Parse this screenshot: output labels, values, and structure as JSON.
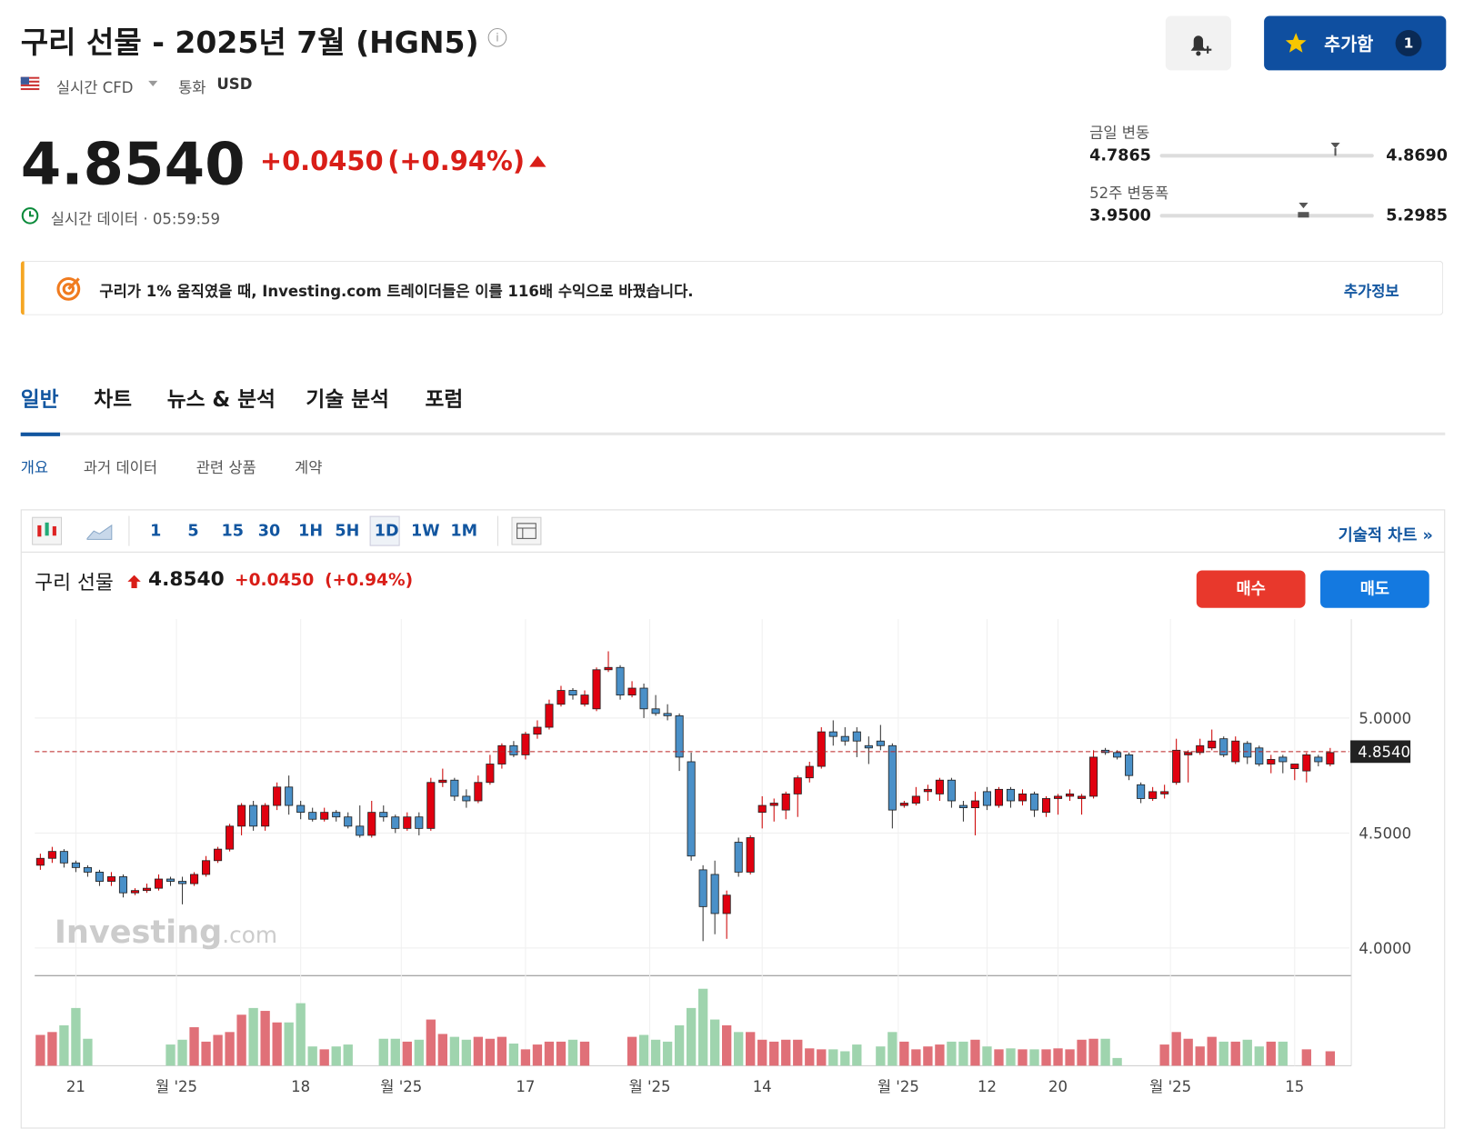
{
  "header": {
    "title": "구리 선물 - 2025년 7월 (HGN5)",
    "market": "실시간 CFD",
    "currency_label": "통화",
    "currency": "USD",
    "watchlist_button": "추가함",
    "watchlist_count": "1"
  },
  "quote": {
    "price": "4.8540",
    "change": "+0.0450",
    "change_pct": "(+0.94%)",
    "status": "실시간 데이터 · 05:59:59"
  },
  "ranges": [
    {
      "label": "금일 변동",
      "low": "4.7865",
      "high": "4.8690"
    },
    {
      "label": "52주 변동폭",
      "low": "3.9500",
      "high": "5.2985"
    }
  ],
  "banner": {
    "text": "구리가 1% 움직였을 때, Investing.com 트레이더들은 이를 116배 수익으로 바꿨습니다.",
    "link": "추가정보"
  },
  "tabs": [
    "일반",
    "차트",
    "뉴스 & 분석",
    "기술 분석",
    "포럼"
  ],
  "subtabs": [
    "개요",
    "과거 데이터",
    "관련 상품",
    "계약"
  ],
  "toolbar": {
    "intervals": [
      "1",
      "5",
      "15",
      "30",
      "1H",
      "5H",
      "1D",
      "1W",
      "1M"
    ],
    "link": "기술적 차트 »"
  },
  "chart_header": {
    "name": "구리 선물",
    "buy": "매수",
    "sell": "매도",
    "watermark": "Investing",
    "watermark_suffix": ".com"
  },
  "chart_data": {
    "type": "candlestick",
    "up_color": "#e0000f",
    "down_color": "#4a90c8",
    "volume_up_color": "#e07078",
    "volume_down_color": "#9fd4ae",
    "grid": true,
    "ylim": [
      3.88,
      5.43
    ],
    "yticks": [
      {
        "value": 4,
        "label": "4.0000"
      },
      {
        "value": 4.5,
        "label": "4.5000"
      },
      {
        "value": 5,
        "label": "5.0000"
      }
    ],
    "last_price": {
      "value": 4.854,
      "label": "4.8540"
    },
    "xticks": [
      {
        "value": 3,
        "label": "21"
      },
      {
        "value": 11.5,
        "label": "월 '25"
      },
      {
        "value": 22,
        "label": "18"
      },
      {
        "value": 30.5,
        "label": "월 '25"
      },
      {
        "value": 41,
        "label": "17"
      },
      {
        "value": 51.5,
        "label": "월 '25"
      },
      {
        "value": 61,
        "label": "14"
      },
      {
        "value": 72.5,
        "label": "월 '25"
      },
      {
        "value": 80,
        "label": "12"
      },
      {
        "value": 86,
        "label": "20"
      },
      {
        "value": 95.5,
        "label": "월 '25"
      },
      {
        "value": 106,
        "label": "15"
      }
    ],
    "ohlc": [
      [
        4.36,
        4.41,
        4.34,
        4.39
      ],
      [
        4.39,
        4.44,
        4.37,
        4.42
      ],
      [
        4.42,
        4.43,
        4.35,
        4.37
      ],
      [
        4.37,
        4.38,
        4.33,
        4.35
      ],
      [
        4.35,
        4.36,
        4.31,
        4.33
      ],
      [
        4.33,
        4.34,
        4.27,
        4.29
      ],
      [
        4.29,
        4.33,
        4.27,
        4.31
      ],
      [
        4.31,
        4.32,
        4.22,
        4.24
      ],
      [
        4.24,
        4.26,
        4.23,
        4.25
      ],
      [
        4.25,
        4.28,
        4.24,
        4.26
      ],
      [
        4.26,
        4.32,
        4.25,
        4.3
      ],
      [
        4.3,
        4.31,
        4.27,
        4.29
      ],
      [
        4.29,
        4.31,
        4.19,
        4.28
      ],
      [
        4.28,
        4.33,
        4.27,
        4.32
      ],
      [
        4.32,
        4.4,
        4.31,
        4.38
      ],
      [
        4.38,
        4.44,
        4.37,
        4.43
      ],
      [
        4.43,
        4.54,
        4.42,
        4.53
      ],
      [
        4.53,
        4.63,
        4.49,
        4.62
      ],
      [
        4.62,
        4.64,
        4.51,
        4.53
      ],
      [
        4.53,
        4.63,
        4.51,
        4.62
      ],
      [
        4.62,
        4.72,
        4.6,
        4.7
      ],
      [
        4.7,
        4.75,
        4.58,
        4.62
      ],
      [
        4.62,
        4.64,
        4.56,
        4.59
      ],
      [
        4.59,
        4.61,
        4.55,
        4.56
      ],
      [
        4.56,
        4.61,
        4.55,
        4.59
      ],
      [
        4.59,
        4.6,
        4.55,
        4.57
      ],
      [
        4.57,
        4.59,
        4.52,
        4.53
      ],
      [
        4.53,
        4.62,
        4.48,
        4.49
      ],
      [
        4.49,
        4.64,
        4.48,
        4.59
      ],
      [
        4.59,
        4.62,
        4.55,
        4.57
      ],
      [
        4.57,
        4.58,
        4.5,
        4.52
      ],
      [
        4.52,
        4.59,
        4.51,
        4.57
      ],
      [
        4.57,
        4.59,
        4.49,
        4.52
      ],
      [
        4.52,
        4.74,
        4.51,
        4.72
      ],
      [
        4.72,
        4.78,
        4.7,
        4.73
      ],
      [
        4.73,
        4.74,
        4.64,
        4.66
      ],
      [
        4.66,
        4.69,
        4.61,
        4.64
      ],
      [
        4.64,
        4.75,
        4.63,
        4.72
      ],
      [
        4.72,
        4.84,
        4.71,
        4.8
      ],
      [
        4.8,
        4.89,
        4.78,
        4.88
      ],
      [
        4.88,
        4.9,
        4.83,
        4.84
      ],
      [
        4.84,
        4.94,
        4.82,
        4.93
      ],
      [
        4.93,
        4.99,
        4.91,
        4.96
      ],
      [
        4.96,
        5.08,
        4.95,
        5.06
      ],
      [
        5.06,
        5.14,
        5.05,
        5.12
      ],
      [
        5.12,
        5.13,
        5.08,
        5.1
      ],
      [
        5.06,
        5.12,
        5.05,
        5.1
      ],
      [
        5.04,
        5.22,
        5.03,
        5.21
      ],
      [
        5.21,
        5.29,
        5.2,
        5.22
      ],
      [
        5.22,
        5.23,
        5.08,
        5.1
      ],
      [
        5.1,
        5.16,
        5.09,
        5.13
      ],
      [
        5.13,
        5.15,
        5.0,
        5.04
      ],
      [
        5.04,
        5.1,
        5.01,
        5.02
      ],
      [
        5.02,
        5.06,
        4.99,
        5.01
      ],
      [
        5.01,
        5.02,
        4.77,
        4.83
      ],
      [
        4.81,
        4.85,
        4.38,
        4.4
      ],
      [
        4.34,
        4.36,
        4.03,
        4.18
      ],
      [
        4.32,
        4.38,
        4.06,
        4.15
      ],
      [
        4.15,
        4.25,
        4.04,
        4.23
      ],
      [
        4.46,
        4.48,
        4.31,
        4.33
      ],
      [
        4.33,
        4.49,
        4.32,
        4.48
      ],
      [
        4.59,
        4.66,
        4.52,
        4.62
      ],
      [
        4.62,
        4.65,
        4.55,
        4.63
      ],
      [
        4.6,
        4.68,
        4.56,
        4.67
      ],
      [
        4.67,
        4.75,
        4.57,
        4.74
      ],
      [
        4.74,
        4.81,
        4.72,
        4.79
      ],
      [
        4.79,
        4.96,
        4.78,
        4.94
      ],
      [
        4.94,
        4.99,
        4.88,
        4.92
      ],
      [
        4.92,
        4.96,
        4.88,
        4.9
      ],
      [
        4.94,
        4.96,
        4.83,
        4.9
      ],
      [
        4.88,
        4.92,
        4.8,
        4.87
      ],
      [
        4.9,
        4.97,
        4.86,
        4.88
      ],
      [
        4.88,
        4.89,
        4.52,
        4.6
      ],
      [
        4.62,
        4.64,
        4.61,
        4.63
      ],
      [
        4.63,
        4.7,
        4.62,
        4.66
      ],
      [
        4.68,
        4.71,
        4.64,
        4.69
      ],
      [
        4.67,
        4.74,
        4.64,
        4.73
      ],
      [
        4.73,
        4.74,
        4.61,
        4.64
      ],
      [
        4.62,
        4.64,
        4.55,
        4.61
      ],
      [
        4.61,
        4.68,
        4.49,
        4.64
      ],
      [
        4.68,
        4.7,
        4.6,
        4.62
      ],
      [
        4.62,
        4.7,
        4.61,
        4.69
      ],
      [
        4.69,
        4.7,
        4.61,
        4.64
      ],
      [
        4.64,
        4.69,
        4.62,
        4.67
      ],
      [
        4.67,
        4.68,
        4.57,
        4.6
      ],
      [
        4.59,
        4.66,
        4.57,
        4.65
      ],
      [
        4.65,
        4.67,
        4.58,
        4.66
      ],
      [
        4.66,
        4.69,
        4.64,
        4.67
      ],
      [
        4.65,
        4.67,
        4.58,
        4.66
      ],
      [
        4.66,
        4.86,
        4.65,
        4.83
      ],
      [
        4.86,
        4.87,
        4.84,
        4.85
      ],
      [
        4.85,
        4.86,
        4.82,
        4.83
      ],
      [
        4.84,
        4.85,
        4.73,
        4.75
      ],
      [
        4.71,
        4.72,
        4.63,
        4.65
      ],
      [
        4.65,
        4.7,
        4.64,
        4.68
      ],
      [
        4.67,
        4.71,
        4.65,
        4.68
      ],
      [
        4.72,
        4.91,
        4.71,
        4.86
      ],
      [
        4.84,
        4.86,
        4.72,
        4.85
      ],
      [
        4.85,
        4.91,
        4.84,
        4.88
      ],
      [
        4.87,
        4.95,
        4.86,
        4.9
      ],
      [
        4.91,
        4.92,
        4.83,
        4.84
      ],
      [
        4.81,
        4.92,
        4.8,
        4.9
      ],
      [
        4.89,
        4.9,
        4.8,
        4.83
      ],
      [
        4.87,
        4.88,
        4.79,
        4.8
      ],
      [
        4.8,
        4.84,
        4.76,
        4.82
      ],
      [
        4.83,
        4.84,
        4.76,
        4.81
      ],
      [
        4.78,
        4.8,
        4.73,
        4.8
      ],
      [
        4.77,
        4.85,
        4.72,
        4.84
      ],
      [
        4.83,
        4.84,
        4.79,
        4.81
      ],
      [
        4.8,
        4.87,
        4.79,
        4.85
      ]
    ],
    "volume": [
      32,
      35,
      42,
      60,
      28,
      0,
      0,
      0,
      0,
      0,
      0,
      22,
      27,
      40,
      25,
      32,
      35,
      53,
      60,
      57,
      45,
      45,
      65,
      20,
      17,
      20,
      22,
      0,
      0,
      28,
      28,
      25,
      27,
      48,
      33,
      30,
      27,
      30,
      28,
      30,
      23,
      17,
      22,
      25,
      25,
      27,
      25,
      0,
      0,
      0,
      30,
      32,
      27,
      25,
      42,
      60,
      80,
      48,
      42,
      35,
      35,
      27,
      25,
      27,
      27,
      18,
      17,
      17,
      15,
      22,
      0,
      20,
      35,
      25,
      17,
      20,
      22,
      25,
      25,
      27,
      20,
      17,
      18,
      17,
      17,
      17,
      18,
      17,
      27,
      28,
      28,
      8,
      0,
      0,
      0,
      22,
      35,
      28,
      20,
      30,
      25,
      25,
      27,
      20,
      25,
      25,
      0,
      17,
      0,
      15
    ]
  }
}
